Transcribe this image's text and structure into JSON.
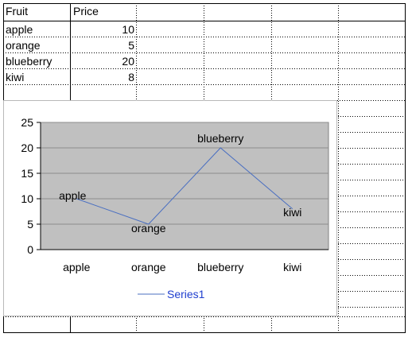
{
  "spreadsheet": {
    "headers": [
      "Fruit",
      "Price"
    ],
    "rows": [
      {
        "fruit": "apple",
        "price": "10"
      },
      {
        "fruit": "orange",
        "price": "5"
      },
      {
        "fruit": "blueberry",
        "price": "20"
      },
      {
        "fruit": "kiwi",
        "price": "8"
      }
    ]
  },
  "chart_data": {
    "type": "line",
    "categories": [
      "apple",
      "orange",
      "blueberry",
      "kiwi"
    ],
    "series": [
      {
        "name": "Series1",
        "values": [
          10,
          5,
          20,
          8
        ]
      }
    ],
    "data_labels": [
      "apple",
      "orange",
      "blueberry",
      "kiwi"
    ],
    "yticks": [
      0,
      5,
      10,
      15,
      20,
      25
    ],
    "ylim": [
      0,
      25
    ],
    "grid": true,
    "legend": "bottom",
    "colors": {
      "plot_bg": "#c0c0c0",
      "line": "#4a6fc1",
      "legend_text": "#1f3fcf",
      "gridline": "#8c8c8c"
    }
  }
}
